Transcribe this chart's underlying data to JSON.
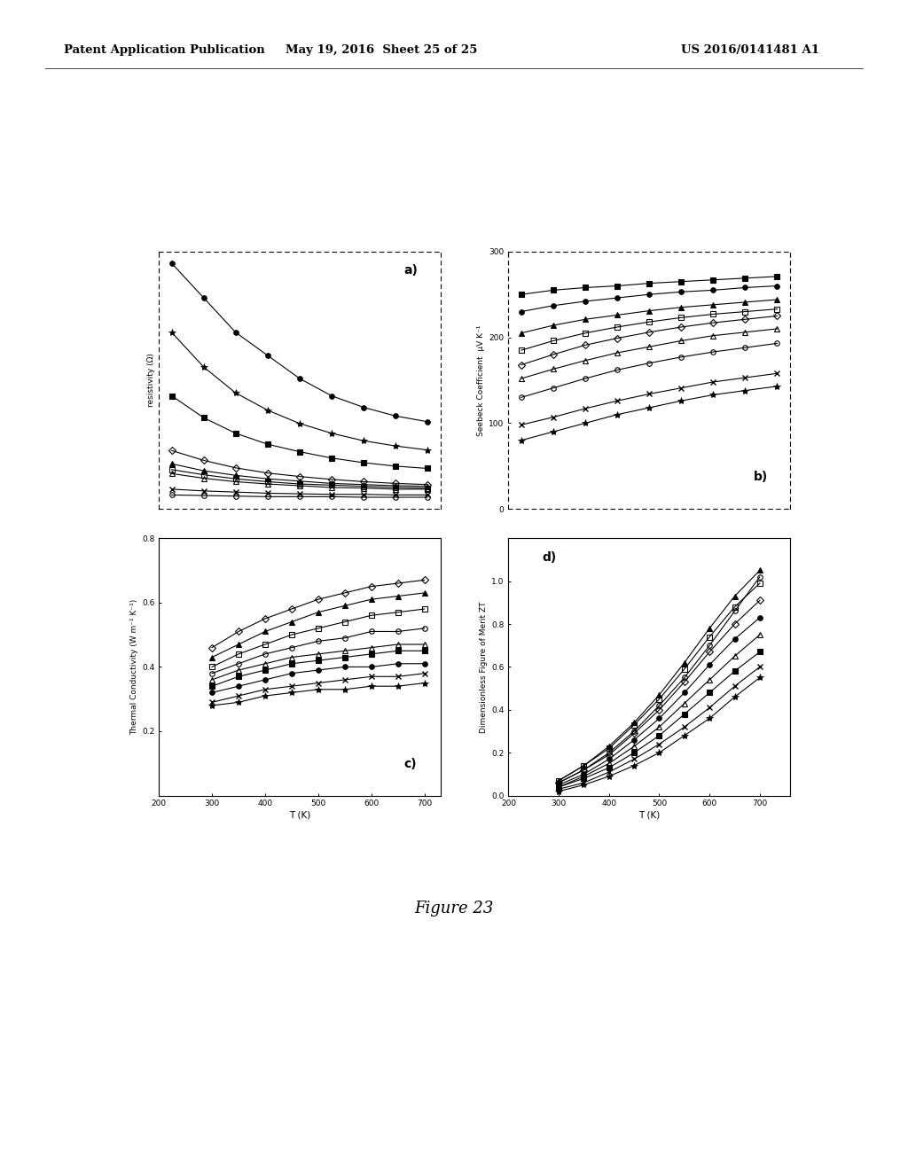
{
  "header_left": "Patent Application Publication",
  "header_mid": "May 19, 2016  Sheet 25 of 25",
  "header_right": "US 2016/0141481 A1",
  "figure_label": "Figure 23",
  "background_color": "#ffffff",
  "subplot_a": {
    "label": "a)",
    "ylabel": "resistivity (Ω)",
    "T": [
      300,
      350,
      400,
      450,
      500,
      550,
      600,
      650,
      700
    ],
    "series": [
      {
        "marker": "o",
        "fillstyle": "full",
        "y": [
          4.2,
          3.6,
          3.0,
          2.6,
          2.2,
          1.9,
          1.7,
          1.55,
          1.45
        ]
      },
      {
        "marker": "*",
        "fillstyle": "full",
        "y": [
          3.0,
          2.4,
          1.95,
          1.65,
          1.42,
          1.25,
          1.12,
          1.03,
          0.96
        ]
      },
      {
        "marker": "s",
        "fillstyle": "full",
        "y": [
          1.9,
          1.52,
          1.25,
          1.06,
          0.93,
          0.82,
          0.74,
          0.68,
          0.64
        ]
      },
      {
        "marker": "D",
        "fillstyle": "none",
        "y": [
          0.95,
          0.78,
          0.65,
          0.56,
          0.5,
          0.45,
          0.41,
          0.38,
          0.36
        ]
      },
      {
        "marker": "^",
        "fillstyle": "full",
        "y": [
          0.72,
          0.6,
          0.52,
          0.46,
          0.42,
          0.38,
          0.36,
          0.34,
          0.33
        ]
      },
      {
        "marker": "s",
        "fillstyle": "none",
        "y": [
          0.62,
          0.53,
          0.46,
          0.41,
          0.37,
          0.35,
          0.33,
          0.31,
          0.3
        ]
      },
      {
        "marker": "^",
        "fillstyle": "none",
        "y": [
          0.55,
          0.47,
          0.41,
          0.37,
          0.34,
          0.31,
          0.3,
          0.28,
          0.28
        ]
      },
      {
        "marker": "x",
        "fillstyle": "full",
        "y": [
          0.28,
          0.25,
          0.23,
          0.21,
          0.2,
          0.19,
          0.19,
          0.18,
          0.18
        ]
      },
      {
        "marker": "o",
        "fillstyle": "none",
        "y": [
          0.18,
          0.17,
          0.16,
          0.15,
          0.15,
          0.15,
          0.14,
          0.14,
          0.14
        ]
      }
    ]
  },
  "subplot_b": {
    "label": "b)",
    "ylabel": "Seebeck Coefficient  μV K⁻¹",
    "ylim": [
      0,
      300
    ],
    "yticks": [
      0,
      100,
      200,
      300
    ],
    "T": [
      300,
      350,
      400,
      450,
      500,
      550,
      600,
      650,
      700
    ],
    "series": [
      {
        "marker": "s",
        "fillstyle": "full",
        "y": [
          250,
          255,
          258,
          260,
          263,
          265,
          267,
          269,
          271
        ]
      },
      {
        "marker": "o",
        "fillstyle": "full",
        "y": [
          230,
          237,
          242,
          246,
          250,
          253,
          255,
          258,
          260
        ]
      },
      {
        "marker": "^",
        "fillstyle": "full",
        "y": [
          205,
          214,
          221,
          226,
          231,
          235,
          238,
          241,
          244
        ]
      },
      {
        "marker": "s",
        "fillstyle": "none",
        "y": [
          185,
          196,
          205,
          212,
          218,
          223,
          227,
          230,
          233
        ]
      },
      {
        "marker": "D",
        "fillstyle": "none",
        "y": [
          168,
          180,
          191,
          199,
          206,
          212,
          217,
          221,
          225
        ]
      },
      {
        "marker": "^",
        "fillstyle": "none",
        "y": [
          152,
          163,
          173,
          182,
          189,
          196,
          202,
          206,
          210
        ]
      },
      {
        "marker": "o",
        "fillstyle": "none",
        "y": [
          130,
          141,
          152,
          162,
          170,
          177,
          183,
          188,
          193
        ]
      },
      {
        "marker": "x",
        "fillstyle": "full",
        "y": [
          98,
          107,
          117,
          126,
          134,
          141,
          148,
          153,
          158
        ]
      },
      {
        "marker": "*",
        "fillstyle": "full",
        "y": [
          80,
          90,
          100,
          110,
          118,
          126,
          133,
          138,
          143
        ]
      }
    ]
  },
  "subplot_c": {
    "label": "c)",
    "xlabel": "T (K)",
    "ylabel": "Thermal Conductivity (W m⁻¹ K⁻¹)",
    "ylim": [
      0,
      0.8
    ],
    "yticks": [
      0.2,
      0.4,
      0.6,
      0.8
    ],
    "xticks": [
      200,
      300,
      400,
      500,
      600,
      700
    ],
    "xlim": [
      200,
      730
    ],
    "T": [
      300,
      350,
      400,
      450,
      500,
      550,
      600,
      650,
      700
    ],
    "series": [
      {
        "marker": "D",
        "fillstyle": "none",
        "y": [
          0.46,
          0.51,
          0.55,
          0.58,
          0.61,
          0.63,
          0.65,
          0.66,
          0.67
        ]
      },
      {
        "marker": "^",
        "fillstyle": "full",
        "y": [
          0.43,
          0.47,
          0.51,
          0.54,
          0.57,
          0.59,
          0.61,
          0.62,
          0.63
        ]
      },
      {
        "marker": "s",
        "fillstyle": "none",
        "y": [
          0.4,
          0.44,
          0.47,
          0.5,
          0.52,
          0.54,
          0.56,
          0.57,
          0.58
        ]
      },
      {
        "marker": "o",
        "fillstyle": "none",
        "y": [
          0.38,
          0.41,
          0.44,
          0.46,
          0.48,
          0.49,
          0.51,
          0.51,
          0.52
        ]
      },
      {
        "marker": "^",
        "fillstyle": "none",
        "y": [
          0.36,
          0.39,
          0.41,
          0.43,
          0.44,
          0.45,
          0.46,
          0.47,
          0.47
        ]
      },
      {
        "marker": "s",
        "fillstyle": "full",
        "y": [
          0.34,
          0.37,
          0.39,
          0.41,
          0.42,
          0.43,
          0.44,
          0.45,
          0.45
        ]
      },
      {
        "marker": "o",
        "fillstyle": "full",
        "y": [
          0.32,
          0.34,
          0.36,
          0.38,
          0.39,
          0.4,
          0.4,
          0.41,
          0.41
        ]
      },
      {
        "marker": "x",
        "fillstyle": "full",
        "y": [
          0.29,
          0.31,
          0.33,
          0.34,
          0.35,
          0.36,
          0.37,
          0.37,
          0.38
        ]
      },
      {
        "marker": "*",
        "fillstyle": "full",
        "y": [
          0.28,
          0.29,
          0.31,
          0.32,
          0.33,
          0.33,
          0.34,
          0.34,
          0.35
        ]
      }
    ]
  },
  "subplot_d": {
    "label": "d)",
    "xlabel": "T (K)",
    "ylabel": "Dimensionless Figure of Merit ZT",
    "ylim": [
      0.0,
      1.2
    ],
    "yticks": [
      0.0,
      0.2,
      0.4,
      0.6,
      0.8,
      1.0
    ],
    "xticks": [
      200,
      300,
      400,
      500,
      600,
      700
    ],
    "xlim": [
      200,
      760
    ],
    "T": [
      300,
      350,
      400,
      450,
      500,
      550,
      600,
      650,
      700
    ],
    "series": [
      {
        "marker": "o",
        "fillstyle": "none",
        "y": [
          0.06,
          0.12,
          0.2,
          0.3,
          0.42,
          0.55,
          0.7,
          0.86,
          1.02
        ]
      },
      {
        "marker": "^",
        "fillstyle": "full",
        "y": [
          0.07,
          0.14,
          0.23,
          0.34,
          0.47,
          0.62,
          0.78,
          0.93,
          1.05
        ]
      },
      {
        "marker": "s",
        "fillstyle": "none",
        "y": [
          0.07,
          0.14,
          0.22,
          0.33,
          0.45,
          0.59,
          0.74,
          0.88,
          0.99
        ]
      },
      {
        "marker": "D",
        "fillstyle": "none",
        "y": [
          0.06,
          0.12,
          0.19,
          0.29,
          0.4,
          0.53,
          0.67,
          0.8,
          0.91
        ]
      },
      {
        "marker": "o",
        "fillstyle": "full",
        "y": [
          0.05,
          0.1,
          0.17,
          0.26,
          0.36,
          0.48,
          0.61,
          0.73,
          0.83
        ]
      },
      {
        "marker": "^",
        "fillstyle": "none",
        "y": [
          0.04,
          0.09,
          0.15,
          0.23,
          0.32,
          0.43,
          0.54,
          0.65,
          0.75
        ]
      },
      {
        "marker": "s",
        "fillstyle": "full",
        "y": [
          0.04,
          0.08,
          0.13,
          0.2,
          0.28,
          0.38,
          0.48,
          0.58,
          0.67
        ]
      },
      {
        "marker": "x",
        "fillstyle": "full",
        "y": [
          0.03,
          0.06,
          0.11,
          0.17,
          0.24,
          0.32,
          0.41,
          0.51,
          0.6
        ]
      },
      {
        "marker": "*",
        "fillstyle": "full",
        "y": [
          0.02,
          0.05,
          0.09,
          0.14,
          0.2,
          0.28,
          0.36,
          0.46,
          0.55
        ]
      }
    ]
  }
}
